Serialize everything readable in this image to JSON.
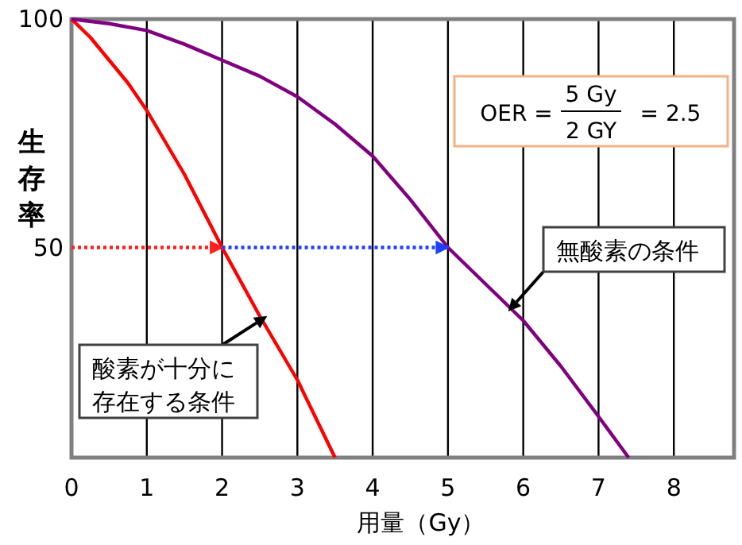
{
  "chart_data": {
    "type": "line",
    "xlabel": "用量（Gy）",
    "ylabel": "生存率",
    "xlim": [
      0,
      8.8
    ],
    "ylim": [
      4,
      100
    ],
    "xticks": [
      0,
      1,
      2,
      3,
      4,
      5,
      6,
      7,
      8
    ],
    "yticks": [
      50,
      100
    ],
    "grid": "x",
    "series": [
      {
        "color": "#ff0000",
        "x": [
          0,
          0.25,
          0.5,
          0.75,
          1,
          1.25,
          1.5,
          1.75,
          2,
          2.5,
          3,
          3.5
        ],
        "values": [
          100,
          96,
          91,
          86,
          80,
          73,
          66,
          58,
          50,
          35,
          21,
          4
        ]
      },
      {
        "color": "#800080",
        "x": [
          0,
          0.5,
          1,
          1.5,
          2,
          2.5,
          3,
          3.5,
          4,
          4.5,
          5,
          5.5,
          6,
          6.5,
          7,
          7.4
        ],
        "values": [
          100,
          99,
          97.5,
          94.5,
          91,
          87.5,
          83,
          77,
          70,
          60.5,
          50,
          42,
          34,
          24,
          13,
          4
        ]
      },
      {
        "color": "#ff2020",
        "line_style": "dotted",
        "x": [
          0,
          2
        ],
        "values": [
          50,
          50
        ]
      },
      {
        "color": "#2040ff",
        "line_style": "dotted",
        "x": [
          2,
          5
        ],
        "values": [
          50,
          50
        ]
      }
    ],
    "annotations": [
      "OER =",
      "5 Gy",
      "2 GY",
      "= 2.5",
      {
        "text": "無酸素の条件",
        "x": 5.8,
        "y": 36
      },
      {
        "text": "酸素が十分に存在する条件",
        "x": 2.6,
        "y": 35
      }
    ]
  }
}
